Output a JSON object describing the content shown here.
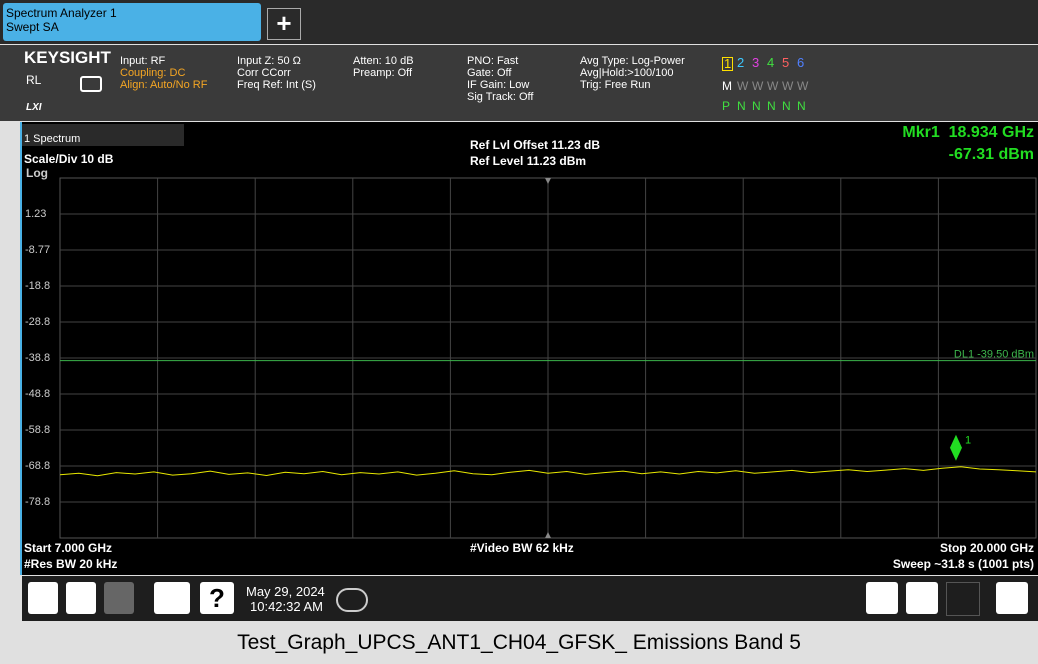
{
  "tab": {
    "title": "Spectrum Analyzer 1",
    "subtitle": "Swept SA",
    "add": "+"
  },
  "header": {
    "brand": "KEYSIGHT",
    "rl": "RL",
    "lxi": "LXI",
    "col1": [
      "Input: RF",
      "Coupling: DC",
      "Align: Auto/No RF"
    ],
    "col2": [
      "Input Z: 50 Ω",
      "Corr CCorr",
      "Freq Ref: Int (S)"
    ],
    "col3": [
      "Atten: 10 dB",
      "Preamp: Off"
    ],
    "col4": [
      "PNO: Fast",
      "Gate: Off",
      "IF Gain: Low",
      "Sig Track: Off"
    ],
    "col5": [
      "Avg Type: Log-Power",
      "Avg|Hold:>100/100",
      "Trig: Free Run"
    ],
    "traces": [
      "1",
      "2",
      "3",
      "4",
      "5",
      "6"
    ],
    "modes": [
      "M",
      "W",
      "W",
      "W",
      "W",
      "W"
    ],
    "dets": [
      "P",
      "N",
      "N",
      "N",
      "N",
      "N"
    ]
  },
  "panel": {
    "name": "1 Spectrum",
    "scale": "Scale/Div 10 dB",
    "log": "Log",
    "ref_offset": "Ref Lvl Offset 11.23 dB",
    "ref_level": "Ref Level 11.23 dBm",
    "mkr_freq": "Mkr1  18.934 GHz",
    "mkr_amp": "-67.31 dBm",
    "start": "Start 7.000 GHz",
    "rbw": "#Res BW 20 kHz",
    "vbw": "#Video BW 62 kHz",
    "stop": "Stop 20.000 GHz",
    "sweep": "Sweep ~31.8 s (1001 pts)"
  },
  "chart_data": {
    "type": "line",
    "xlim": [
      7,
      20
    ],
    "ylim": [
      -88.77,
      11.23
    ],
    "yticks": [
      1.23,
      -8.77,
      {
        "value": -18.77,
        "label": "-18.8"
      },
      {
        "value": -28.77,
        "label": "-28.8"
      },
      {
        "value": -38.77,
        "label": "-38.8"
      },
      {
        "value": -48.77,
        "label": "-48.8"
      },
      {
        "value": -58.77,
        "label": "-58.8"
      },
      {
        "value": -68.77,
        "label": "-68.8"
      },
      {
        "value": -78.77,
        "label": "-78.8"
      }
    ],
    "grid": true,
    "series": [
      {
        "color": "#e8e800",
        "x": [
          7,
          7.25,
          7.5,
          7.75,
          8,
          8.25,
          8.5,
          8.75,
          9,
          9.25,
          9.5,
          9.75,
          10,
          10.25,
          10.5,
          10.75,
          11,
          11.25,
          11.5,
          11.75,
          12,
          12.25,
          12.5,
          12.75,
          13,
          13.25,
          13.5,
          13.75,
          14,
          14.25,
          14.5,
          14.75,
          15,
          15.25,
          15.5,
          15.75,
          16,
          16.25,
          16.5,
          16.75,
          17,
          17.25,
          17.5,
          17.75,
          18,
          18.25,
          18.5,
          18.75,
          19,
          19.25,
          19.5,
          19.75,
          20
        ],
        "values": [
          -71.2,
          -70.8,
          -71.5,
          -70.6,
          -71.0,
          -70.4,
          -71.3,
          -70.9,
          -70.2,
          -71.1,
          -70.7,
          -71.4,
          -70.5,
          -70.9,
          -70.3,
          -71.2,
          -70.6,
          -71.0,
          -70.4,
          -71.3,
          -70.8,
          -70.1,
          -70.9,
          -71.2,
          -70.5,
          -70.0,
          -70.8,
          -70.3,
          -71.1,
          -70.6,
          -70.2,
          -70.9,
          -70.4,
          -71.0,
          -70.3,
          -70.7,
          -70.1,
          -70.8,
          -70.4,
          -70.0,
          -70.6,
          -70.2,
          -69.8,
          -70.3,
          -69.9,
          -69.5,
          -70.0,
          -69.4,
          -69.0,
          -69.6,
          -69.8,
          -70.1,
          -70.4
        ]
      }
    ],
    "display_line": {
      "value": -39.5,
      "label": "DL1 -39.50 dBm",
      "color": "#3cb44b"
    },
    "marker": {
      "x": 18.934,
      "y": -67.31,
      "label": "1",
      "color": "#22dd22"
    }
  },
  "taskbar": {
    "date": "May 29, 2024",
    "time": "10:42:32 AM",
    "help": "?"
  },
  "caption": "Test_Graph_UPCS_ANT1_CH04_GFSK_ Emissions Band 5"
}
